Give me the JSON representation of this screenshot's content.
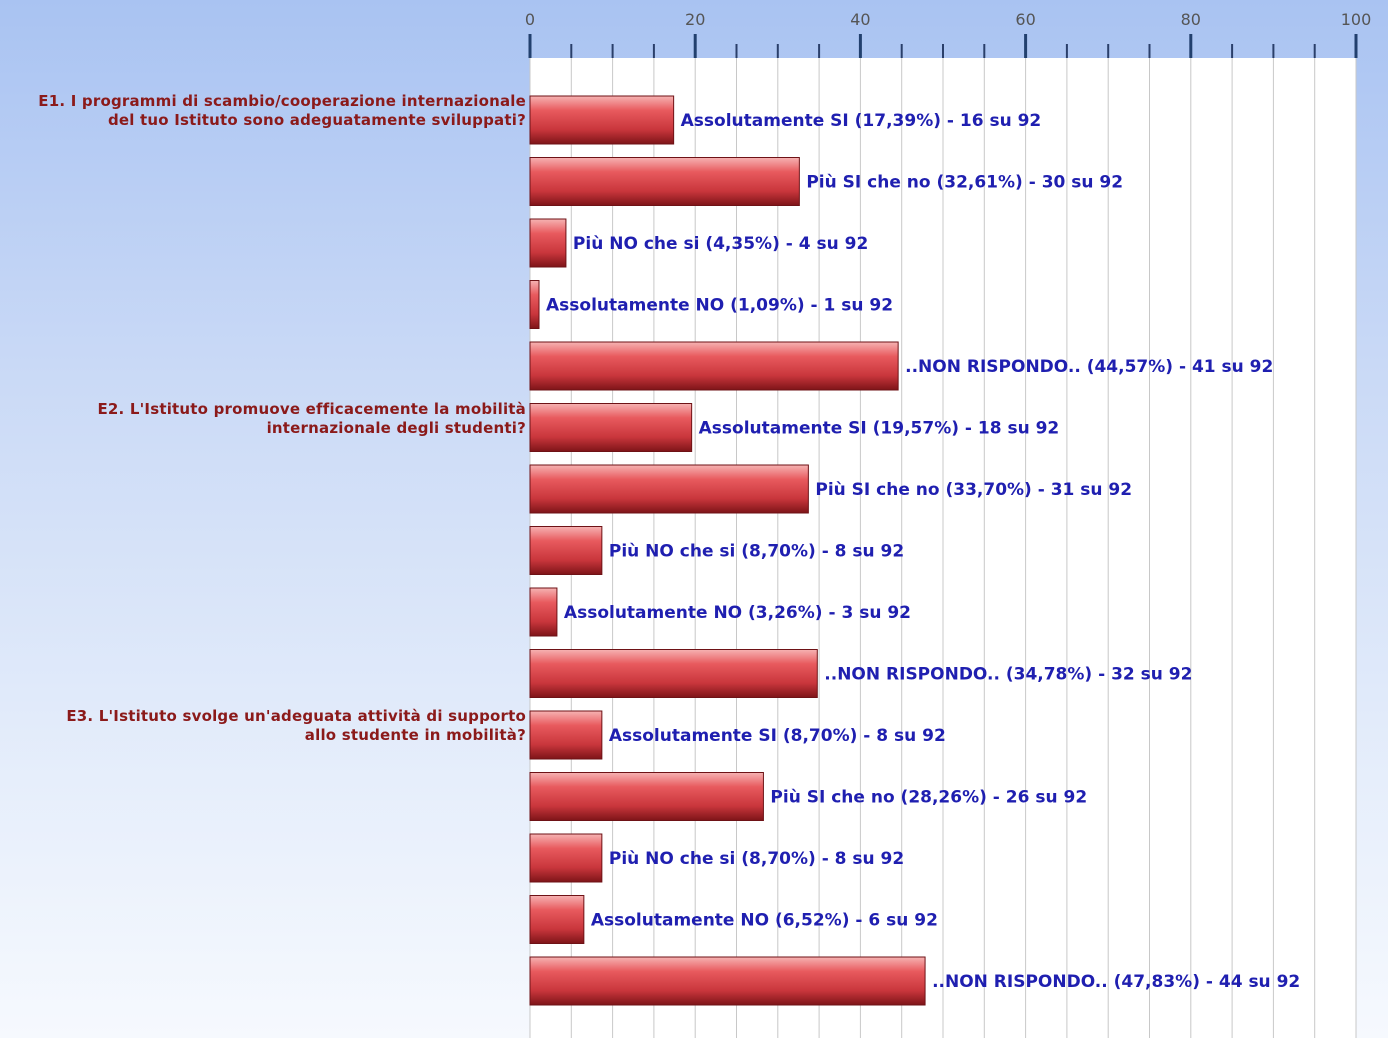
{
  "chart_data": {
    "type": "bar",
    "orientation": "horizontal",
    "xlim": [
      0,
      100
    ],
    "x_ticks": [
      0,
      20,
      40,
      60,
      80,
      100
    ],
    "grid": true,
    "colors": {
      "bar": "#d9454a",
      "label": "#1f1fb0",
      "question": "#8b1a1a"
    },
    "groups": [
      {
        "question_lines": [
          "E1. I programmi di scambio/cooperazione internazionale",
          "del tuo Istituto sono adeguatamente sviluppati?"
        ],
        "bars": [
          {
            "value": 17.39,
            "label": "Assolutamente SI (17,39%) - 16 su 92"
          },
          {
            "value": 32.61,
            "label": "Più SI che no (32,61%) - 30 su 92"
          },
          {
            "value": 4.35,
            "label": "Più NO che si (4,35%) - 4 su 92"
          },
          {
            "value": 1.09,
            "label": "Assolutamente NO (1,09%) - 1 su 92"
          },
          {
            "value": 44.57,
            "label": "..NON RISPONDO.. (44,57%) - 41 su 92"
          }
        ]
      },
      {
        "question_lines": [
          "E2. L'Istituto promuove efficacemente la mobilità",
          "internazionale degli studenti?"
        ],
        "bars": [
          {
            "value": 19.57,
            "label": "Assolutamente SI (19,57%) - 18 su 92"
          },
          {
            "value": 33.7,
            "label": "Più SI che no (33,70%) - 31 su 92"
          },
          {
            "value": 8.7,
            "label": "Più NO che si (8,70%) - 8 su 92"
          },
          {
            "value": 3.26,
            "label": "Assolutamente NO (3,26%) - 3 su 92"
          },
          {
            "value": 34.78,
            "label": "..NON RISPONDO.. (34,78%) - 32 su 92"
          }
        ]
      },
      {
        "question_lines": [
          "E3. L'Istituto svolge un'adeguata attività di supporto",
          "allo studente in mobilità?"
        ],
        "bars": [
          {
            "value": 8.7,
            "label": "Assolutamente SI (8,70%) - 8 su 92"
          },
          {
            "value": 28.26,
            "label": "Più SI che no (28,26%) - 26 su 92"
          },
          {
            "value": 8.7,
            "label": "Più NO che si (8,70%) - 8 su 92"
          },
          {
            "value": 6.52,
            "label": "Assolutamente NO (6,52%) - 6 su 92"
          },
          {
            "value": 47.83,
            "label": "..NON RISPONDO.. (47,83%) - 44 su 92"
          }
        ]
      }
    ]
  }
}
